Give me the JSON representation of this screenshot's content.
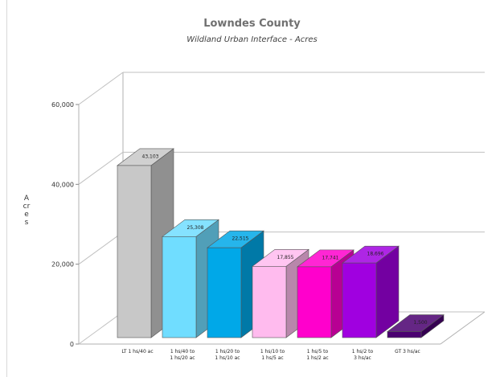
{
  "chart_data": {
    "type": "bar",
    "title": "Lowndes County",
    "subtitle": "Wildland Urban Interface - Acres",
    "ylabel": "Acres",
    "xlabel": "",
    "ylim": [
      0,
      60000
    ],
    "yticks": [
      0,
      20000,
      40000,
      60000
    ],
    "ytick_labels": [
      "0",
      "20,000",
      "40,000",
      "60,000"
    ],
    "grid": true,
    "categories": [
      [
        "LT 1 hs/40 ac"
      ],
      [
        "1 hs/40 to",
        "1 hs/20 ac"
      ],
      [
        "1 hs/20 to",
        "1 hs/10 ac"
      ],
      [
        "1 hs/10 to",
        "1 hs/5 ac"
      ],
      [
        "1 hs/5 to",
        "1 hs/2 ac"
      ],
      [
        "1 hs/2 to",
        "3 hs/ac"
      ],
      [
        "GT 3 hs/ac"
      ]
    ],
    "values": [
      43103,
      25308,
      22515,
      17855,
      17741,
      18696,
      1500
    ],
    "value_labels": [
      "43,103",
      "25,308",
      "22,515",
      "17,855",
      "17,741",
      "18,696",
      "1,500"
    ],
    "colors": [
      "#c8c8c8",
      "#70ddff",
      "#00a8e8",
      "#ffbbee",
      "#ff00cc",
      "#a000e0",
      "#4a0070"
    ]
  }
}
